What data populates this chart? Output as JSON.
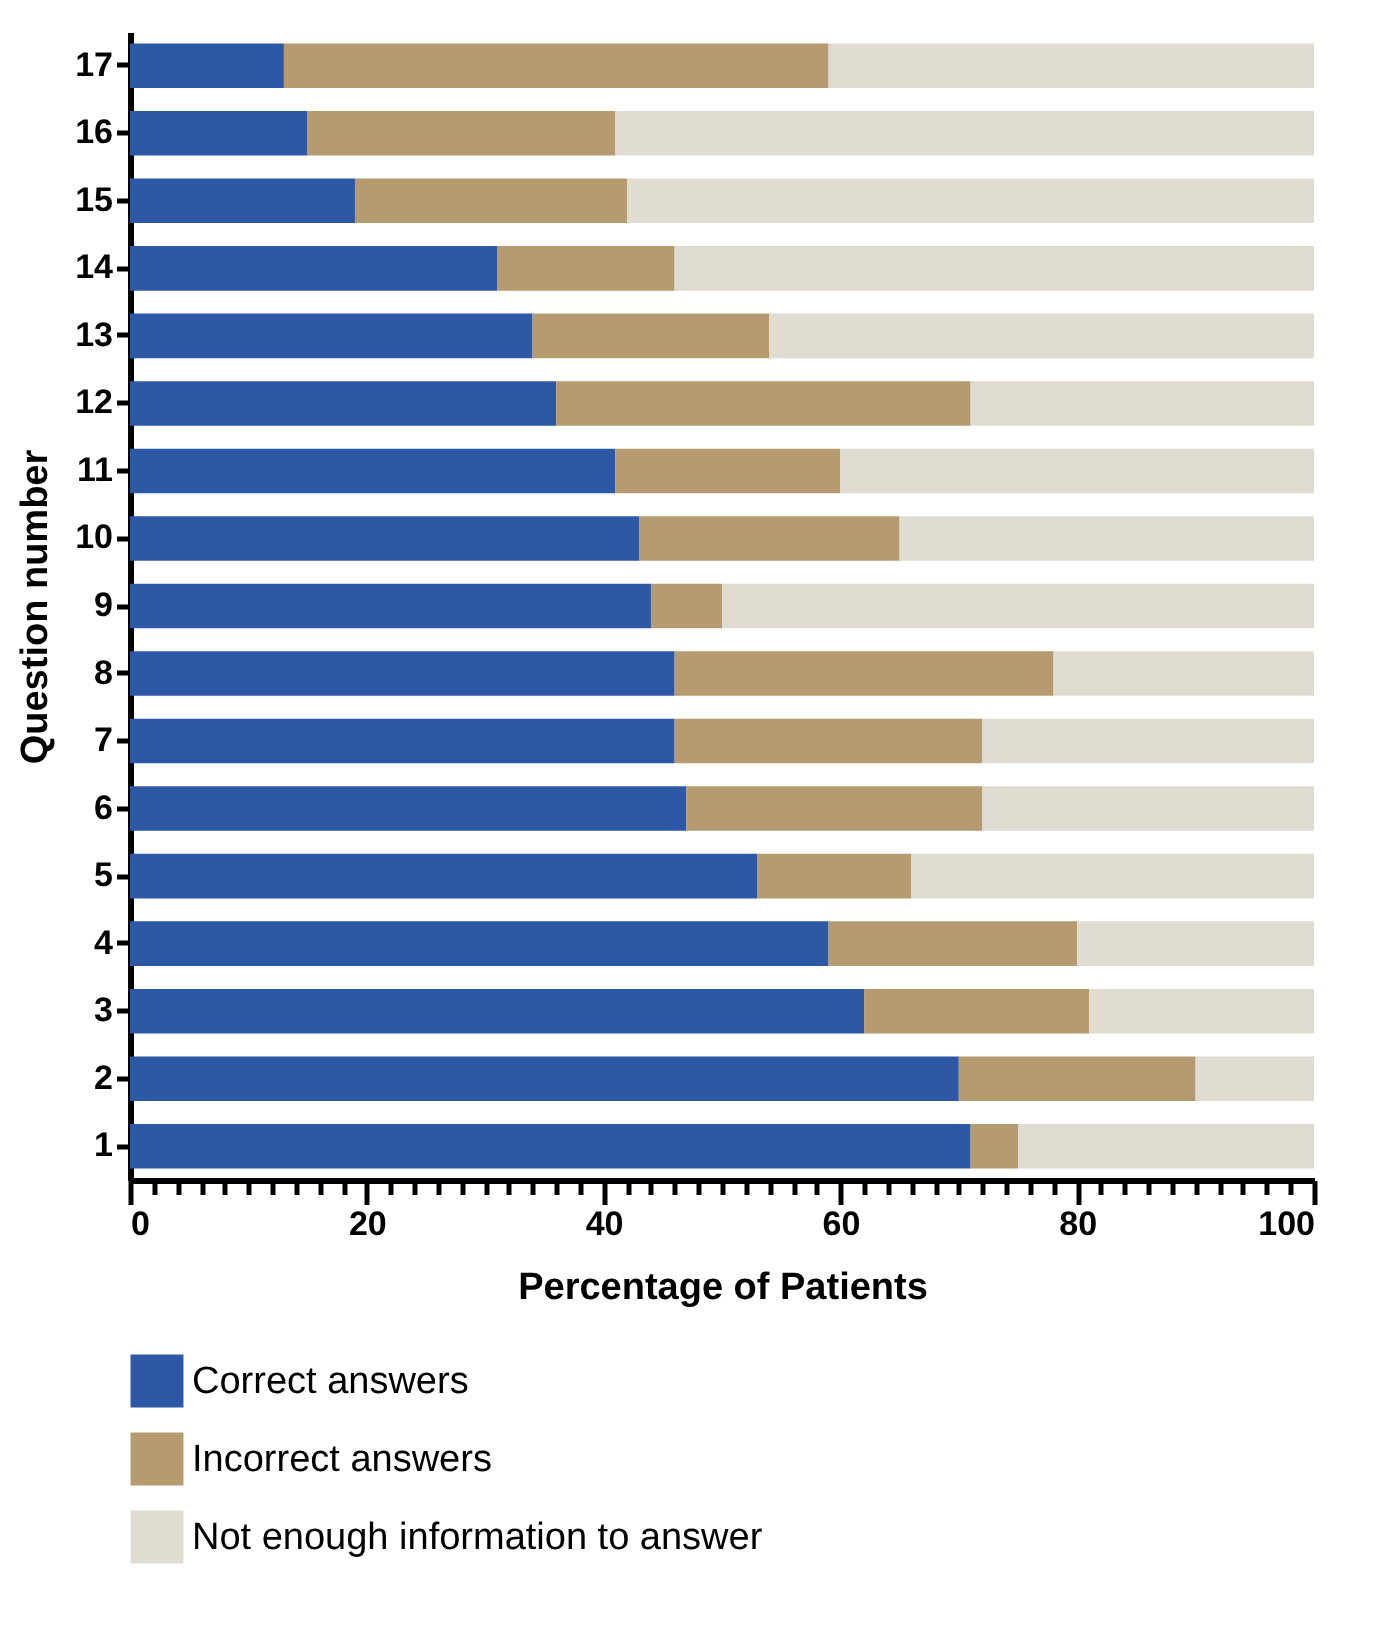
{
  "chart_data": {
    "type": "bar",
    "orientation": "horizontal",
    "stacked": true,
    "xlabel": "Percentage of Patients",
    "ylabel": "Question number",
    "categories": [
      "17",
      "16",
      "15",
      "14",
      "13",
      "12",
      "11",
      "10",
      "9",
      "8",
      "7",
      "6",
      "5",
      "4",
      "3",
      "2",
      "1"
    ],
    "series": [
      {
        "name": "Correct answers",
        "color": "#2d58a6",
        "values": [
          13,
          15,
          19,
          31,
          34,
          36,
          41,
          43,
          44,
          46,
          46,
          47,
          53,
          59,
          62,
          70,
          71
        ]
      },
      {
        "name": "Incorrect answers",
        "color": "#b59b6f",
        "values": [
          46,
          26,
          23,
          15,
          20,
          35,
          19,
          22,
          6,
          32,
          26,
          25,
          13,
          21,
          19,
          20,
          4
        ]
      },
      {
        "name": "Not enough information to answer",
        "color": "#e0dcd2",
        "values": [
          41,
          59,
          58,
          54,
          46,
          29,
          40,
          35,
          50,
          22,
          28,
          28,
          34,
          20,
          19,
          10,
          25
        ]
      }
    ],
    "xlim": [
      0,
      100
    ],
    "xticks": [
      0,
      {
        "value": 2,
        "label": null
      },
      {
        "value": 4,
        "label": null
      },
      {
        "value": 6,
        "label": null
      },
      {
        "value": 8,
        "label": null
      },
      {
        "value": 10,
        "label": null
      },
      {
        "value": 12,
        "label": null
      },
      {
        "value": 14,
        "label": null
      },
      {
        "value": 16,
        "label": null
      },
      {
        "value": 18,
        "label": null
      },
      20,
      {
        "value": 22,
        "label": null
      },
      {
        "value": 24,
        "label": null
      },
      {
        "value": 26,
        "label": null
      },
      {
        "value": 28,
        "label": null
      },
      {
        "value": 30,
        "label": null
      },
      {
        "value": 32,
        "label": null
      },
      {
        "value": 34,
        "label": null
      },
      {
        "value": 36,
        "label": null
      },
      {
        "value": 38,
        "label": null
      },
      40,
      {
        "value": 42,
        "label": null
      },
      {
        "value": 44,
        "label": null
      },
      {
        "value": 46,
        "label": null
      },
      {
        "value": 48,
        "label": null
      },
      {
        "value": 50,
        "label": null
      },
      {
        "value": 52,
        "label": null
      },
      {
        "value": 54,
        "label": null
      },
      {
        "value": 56,
        "label": null
      },
      {
        "value": 58,
        "label": null
      },
      60,
      {
        "value": 62,
        "label": null
      },
      {
        "value": 64,
        "label": null
      },
      {
        "value": 66,
        "label": null
      },
      {
        "value": 68,
        "label": null
      },
      {
        "value": 70,
        "label": null
      },
      {
        "value": 72,
        "label": null
      },
      {
        "value": 74,
        "label": null
      },
      {
        "value": 76,
        "label": null
      },
      {
        "value": 78,
        "label": null
      },
      80,
      {
        "value": 82,
        "label": null
      },
      {
        "value": 84,
        "label": null
      },
      {
        "value": 86,
        "label": null
      },
      {
        "value": 88,
        "label": null
      },
      {
        "value": 90,
        "label": null
      },
      {
        "value": 92,
        "label": null
      },
      {
        "value": 94,
        "label": null
      },
      {
        "value": 96,
        "label": null
      },
      {
        "value": 98,
        "label": null
      },
      100
    ],
    "legend": "bottom"
  }
}
